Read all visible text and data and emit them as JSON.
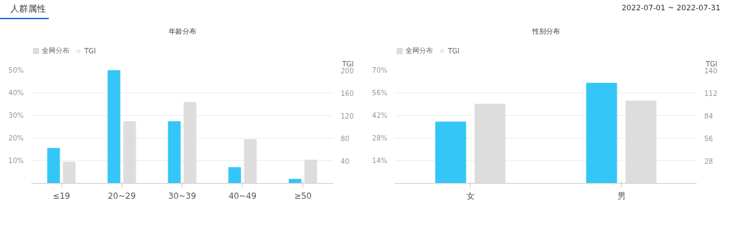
{
  "chart_data": [
    {
      "type": "bar",
      "title": "年龄分布",
      "y2label": "TGI",
      "annotations": [
        "人群属性"
      ],
      "categories": [
        "≤19",
        "20~29",
        "30~39",
        "40~49",
        "≥50"
      ],
      "series": [
        {
          "color": "#33c6f7",
          "values": [
            15.5,
            50,
            27.3,
            7,
            1.8
          ]
        },
        {
          "name": "全网分布",
          "color": "#dddddd",
          "values": [
            9.4,
            27.3,
            35.8,
            19.4,
            10.3
          ]
        },
        {
          "name": "TGI",
          "type": "line",
          "marker": "circle",
          "color": "#cccccc",
          "values": [
            null,
            null,
            null,
            null,
            null
          ]
        }
      ],
      "ylim": [
        0,
        50
      ],
      "yticks": [
        {
          "value": 10,
          "label": "10%"
        },
        {
          "value": 20,
          "label": "20%"
        },
        {
          "value": 30,
          "label": "30%"
        },
        {
          "value": 40,
          "label": "40%"
        },
        {
          "value": 50,
          "label": "50%"
        }
      ],
      "y2lim": [
        0,
        200
      ],
      "y2ticks": [
        40,
        80,
        120,
        160,
        200
      ],
      "grid": "y",
      "legend": "top left"
    },
    {
      "type": "bar",
      "title": "性别分布",
      "y2label": "TGI",
      "annotations": [
        "2022-07-01 ~ 2022-07-31"
      ],
      "categories": [
        "女",
        "男"
      ],
      "series": [
        {
          "color": "#33c6f7",
          "values": [
            38,
            62
          ]
        },
        {
          "name": "全网分布",
          "color": "#dddddd",
          "values": [
            49,
            51
          ]
        },
        {
          "name": "TGI",
          "type": "line",
          "marker": "circle",
          "color": "#cccccc",
          "values": [
            null,
            null
          ]
        }
      ],
      "ylim": [
        0,
        70
      ],
      "yticks": [
        {
          "value": 14,
          "label": "14%"
        },
        {
          "value": 28,
          "label": "28%"
        },
        {
          "value": 42,
          "label": "42%"
        },
        {
          "value": 56,
          "label": "56%"
        },
        {
          "value": 70,
          "label": "70%"
        }
      ],
      "y2lim": [
        0,
        140
      ],
      "y2ticks": [
        28,
        56,
        84,
        112,
        140
      ],
      "grid": "y",
      "legend": "top left"
    }
  ]
}
